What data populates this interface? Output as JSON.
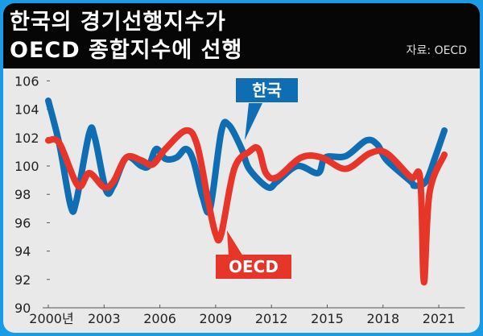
{
  "title_lines": [
    "한국의 경기선행지수가",
    "OECD 종합지수에 선행"
  ],
  "source": "자료: OECD",
  "colors": {
    "korea": "#0f6db3",
    "oecd": "#e8352a",
    "frame": "#1a9be6",
    "background": "#e9e9e9",
    "titlebar": "#060606"
  },
  "chart_data": {
    "type": "line",
    "title": "한국의 경기선행지수가 OECD 종합지수에 선행",
    "xlabel": "",
    "ylabel": "",
    "ylim": [
      90,
      106
    ],
    "xlim": [
      2000,
      2022.3
    ],
    "yticks": [
      "106",
      "104",
      "102",
      "100",
      "98",
      "96",
      "94",
      "92",
      "90"
    ],
    "xticks": [
      {
        "label": "2000년",
        "value": 2000
      },
      {
        "label": "2003",
        "value": 2003
      },
      {
        "label": "2006",
        "value": 2006
      },
      {
        "label": "2009",
        "value": 2009
      },
      {
        "label": "2012",
        "value": 2012
      },
      {
        "label": "2015",
        "value": 2015
      },
      {
        "label": "2018",
        "value": 2018
      },
      {
        "label": "2021",
        "value": 2021
      }
    ],
    "grid": false,
    "series": [
      {
        "name": "한국",
        "color": "#0f6db3",
        "x": [
          2000.0,
          2000.6,
          2001.2,
          2001.5,
          2002.2,
          2002.5,
          2003.1,
          2003.5,
          2004.2,
          2005.0,
          2005.4,
          2005.8,
          2006.3,
          2006.9,
          2007.4,
          2007.8,
          2008.3,
          2008.7,
          2009.3,
          2009.7,
          2010.4,
          2010.8,
          2011.8,
          2012.3,
          2013.4,
          2014.5,
          2014.9,
          2016.0,
          2017.1,
          2017.7,
          2018.2,
          2019.5,
          2019.7,
          2020.3,
          2020.8,
          2021.3
        ],
        "y": [
          104.6,
          101.5,
          97.2,
          97.5,
          102.3,
          102.0,
          98.3,
          98.6,
          100.6,
          100.0,
          100.0,
          101.2,
          100.5,
          100.6,
          101.2,
          100.4,
          97.8,
          97.0,
          102.4,
          102.9,
          101.2,
          99.8,
          98.5,
          98.9,
          100.0,
          99.5,
          100.6,
          100.7,
          101.8,
          101.5,
          100.4,
          98.9,
          98.6,
          98.9,
          100.6,
          102.5
        ]
      },
      {
        "name": "OECD",
        "color": "#e8352a",
        "x": [
          2000.0,
          2000.6,
          2001.6,
          2002.2,
          2003.0,
          2003.5,
          2004.2,
          2005.0,
          2005.6,
          2006.3,
          2007.4,
          2008.0,
          2008.6,
          2009.0,
          2009.3,
          2010.0,
          2010.8,
          2011.3,
          2011.7,
          2012.3,
          2013.6,
          2014.7,
          2016.0,
          2017.3,
          2018.2,
          2019.5,
          2020.0,
          2020.2,
          2020.5,
          2021.3
        ],
        "y": [
          101.8,
          101.6,
          98.6,
          99.5,
          98.5,
          98.9,
          100.6,
          100.4,
          100.1,
          101.2,
          102.5,
          101.5,
          97.5,
          95.2,
          95.2,
          99.8,
          101.0,
          101.2,
          99.5,
          99.2,
          100.6,
          100.6,
          99.8,
          100.9,
          100.9,
          99.2,
          99.1,
          91.8,
          98.1,
          100.8
        ]
      }
    ]
  }
}
